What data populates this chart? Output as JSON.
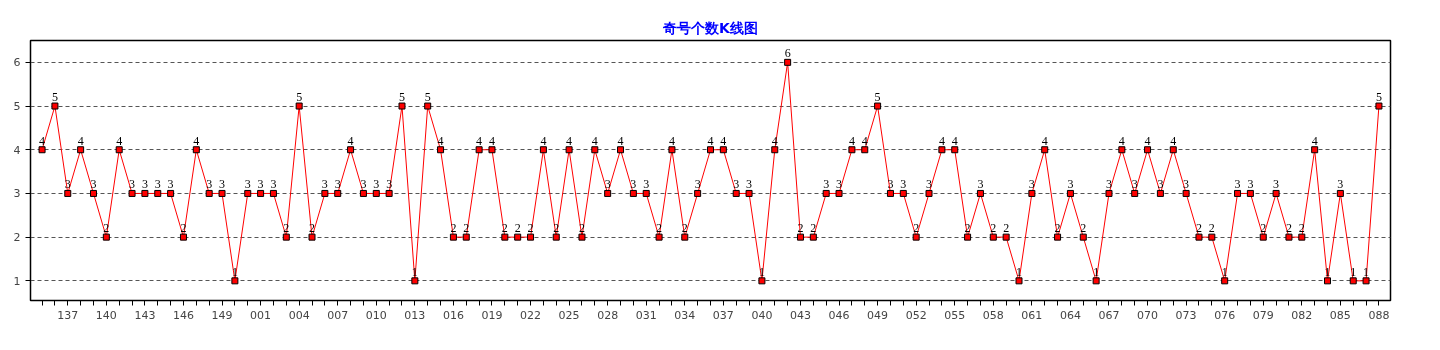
{
  "chart_data": {
    "type": "line",
    "title": "奇号个数K线图",
    "categories": [
      null,
      null,
      "137",
      null,
      null,
      "140",
      null,
      null,
      "143",
      null,
      null,
      "146",
      null,
      null,
      "149",
      null,
      null,
      "001",
      null,
      null,
      "004",
      null,
      null,
      "007",
      null,
      null,
      "010",
      null,
      null,
      "013",
      null,
      null,
      "016",
      null,
      null,
      "019",
      null,
      null,
      "022",
      null,
      null,
      "025",
      null,
      null,
      "028",
      null,
      null,
      "031",
      null,
      null,
      "034",
      null,
      null,
      "037",
      null,
      null,
      "040",
      null,
      null,
      "043",
      null,
      null,
      "046",
      null,
      null,
      "049",
      null,
      null,
      "052",
      null,
      null,
      "055",
      null,
      null,
      "058",
      null,
      null,
      "061",
      null,
      null,
      "064",
      null,
      null,
      "067",
      null,
      null,
      "070",
      null,
      null,
      "073",
      null,
      null,
      "076",
      null,
      null,
      "079",
      null,
      null,
      "082",
      null,
      null,
      "085",
      null,
      null,
      "088"
    ],
    "series": [
      {
        "color": "#ff0000",
        "values": [
          4,
          5,
          3,
          4,
          3,
          2,
          4,
          3,
          3,
          3,
          3,
          2,
          4,
          3,
          3,
          1,
          3,
          3,
          3,
          2,
          5,
          2,
          3,
          3,
          4,
          3,
          3,
          3,
          5,
          1,
          5,
          4,
          2,
          2,
          4,
          4,
          2,
          2,
          2,
          4,
          2,
          4,
          2,
          4,
          3,
          4,
          3,
          3,
          2,
          4,
          2,
          3,
          4,
          4,
          3,
          3,
          1,
          4,
          6,
          2,
          2,
          3,
          3,
          4,
          4,
          5,
          3,
          3,
          2,
          3,
          4,
          4,
          2,
          3,
          2,
          2,
          1,
          3,
          4,
          2,
          3,
          2,
          1,
          3,
          4,
          3,
          4,
          3,
          4,
          3,
          2,
          2,
          1,
          3,
          3,
          2,
          3,
          2,
          2,
          4,
          1,
          3,
          1,
          1,
          5
        ]
      }
    ],
    "ylim": [
      0.55,
      6.5
    ],
    "yticks": [
      1,
      2,
      3,
      4,
      5,
      6
    ],
    "grid": "y",
    "marker": "square",
    "line_style": "solid",
    "data_labels": true
  }
}
